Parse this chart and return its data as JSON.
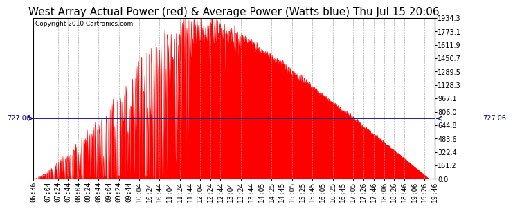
{
  "title": "West Array Actual Power (red) & Average Power (Watts blue) Thu Jul 15 20:06",
  "copyright_text": "Copyright 2010 Cartronics.com",
  "avg_power": 727.06,
  "avg_label": "727.06",
  "y_max": 1934.3,
  "y_min": 0.0,
  "y_ticks": [
    0.0,
    161.2,
    322.4,
    483.6,
    644.8,
    806.0,
    967.1,
    1128.3,
    1289.5,
    1450.7,
    1611.9,
    1773.1,
    1934.3
  ],
  "x_tick_labels": [
    "06:36",
    "07:04",
    "07:24",
    "07:44",
    "08:04",
    "08:24",
    "08:44",
    "09:04",
    "09:24",
    "09:44",
    "10:04",
    "10:24",
    "10:44",
    "11:04",
    "11:24",
    "11:44",
    "12:04",
    "12:24",
    "12:44",
    "13:04",
    "13:24",
    "13:44",
    "14:05",
    "14:25",
    "14:45",
    "15:05",
    "15:25",
    "15:45",
    "16:05",
    "16:25",
    "16:45",
    "17:05",
    "17:26",
    "17:46",
    "18:06",
    "18:26",
    "18:46",
    "19:06",
    "19:26",
    "19:46"
  ],
  "bg_color": "#ffffff",
  "red_color": "#ff0000",
  "blue_color": "#00008b",
  "grid_color": "#999999",
  "title_fontsize": 11,
  "copyright_fontsize": 6.5,
  "tick_fontsize": 7
}
